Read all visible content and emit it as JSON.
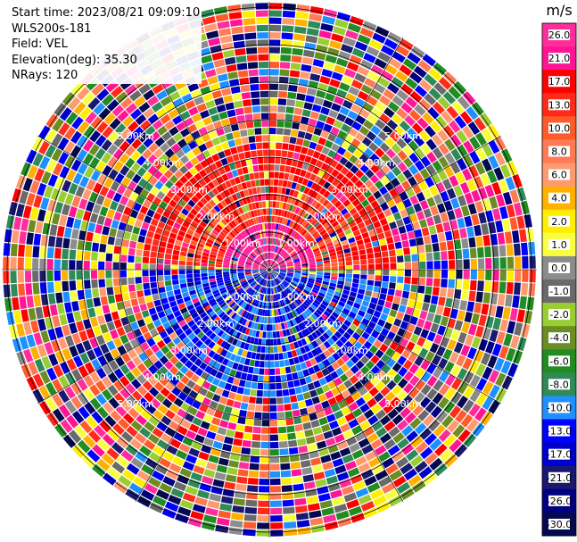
{
  "info": {
    "start_time": "Start time: 2023/08/21 09:09:10",
    "instrument": "WLS200s-181",
    "field": "Field: VEL",
    "elevation": "Elevation(deg): 35.30",
    "nrays": "NRays: 120"
  },
  "colorbar": {
    "unit": "m/s",
    "ticks": [
      "26.0",
      "21.0",
      "17.0",
      "13.0",
      "10.0",
      "8.0",
      "6.0",
      "4.0",
      "2.0",
      "1.0",
      "0.0",
      "-1.0",
      "-2.0",
      "-4.0",
      "-6.0",
      "-8.0",
      "-10.0",
      "-13.0",
      "-17.0",
      "-21.0",
      "-26.0",
      "-30.0"
    ],
    "colors": [
      "#ff2d9b",
      "#ff1493",
      "#ff0000",
      "#ff2a1a",
      "#ff5a2a",
      "#ff7a55",
      "#ff9a70",
      "#ffb000",
      "#ffee00",
      "#f8ff40",
      "#8c8c8c",
      "#6a6a6a",
      "#9acd32",
      "#6b8e23",
      "#228b22",
      "#2e8b57",
      "#1e90ff",
      "#0000ff",
      "#0000cd",
      "#191970",
      "#000080",
      "#050a50"
    ]
  },
  "range_rings": {
    "labels": [
      "1.00km",
      "2.00km",
      "3.00km",
      "4.00km",
      "5.00km"
    ]
  },
  "radar": {
    "nrays": 120,
    "ngates": 36
  }
}
